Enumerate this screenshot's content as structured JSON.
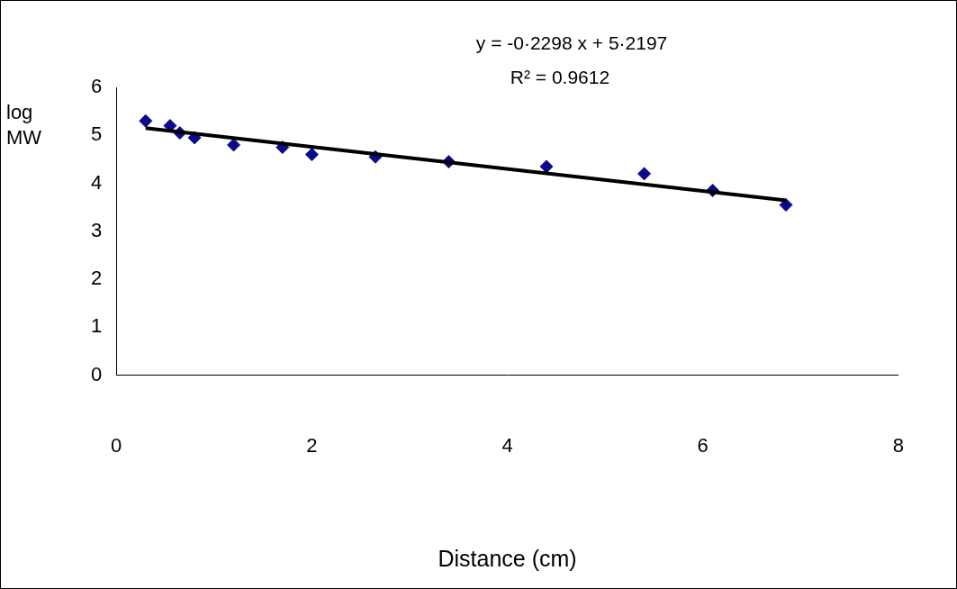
{
  "chart_data": {
    "type": "scatter",
    "x_label": "Distance (cm)",
    "y_label": "log MW",
    "annotations": [
      "y = -0·2298 x + 5·2197",
      "R² = 0.9612"
    ],
    "series": [
      {
        "type": "scatter",
        "marker": "diamond",
        "color": "#0a0a8c",
        "x": [
          0.3,
          0.55,
          0.65,
          0.8,
          1.2,
          1.7,
          2.0,
          2.65,
          3.4,
          4.4,
          5.4,
          6.1,
          6.85
        ],
        "values": [
          5.3,
          5.2,
          5.05,
          4.95,
          4.8,
          4.75,
          4.6,
          4.55,
          4.45,
          4.35,
          4.2,
          3.85,
          3.55
        ]
      },
      {
        "type": "line",
        "line_style": "solid",
        "color": "#000000",
        "x": [
          0.3,
          6.85
        ],
        "values": [
          5.151,
          3.645
        ]
      }
    ],
    "xlim": [
      0,
      8
    ],
    "xticks": [
      0,
      2,
      4,
      6,
      8
    ],
    "ylim": [
      0,
      6
    ],
    "yticks": [
      0,
      1,
      2,
      3,
      4,
      5,
      6
    ],
    "grid": false
  }
}
